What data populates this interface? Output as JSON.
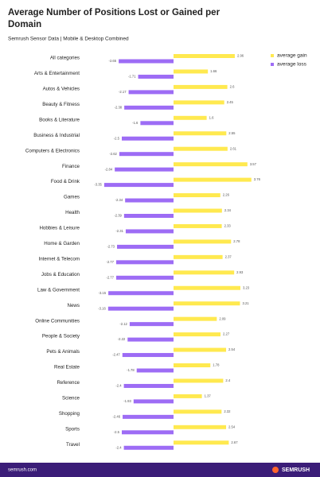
{
  "chart_data": {
    "type": "diverging-bar",
    "title": "Average Number of Positions Lost or Gained per Domain",
    "subtitle": "Semrush Sensor Data | Mobile & Desktop Combined",
    "categories": [
      "All categories",
      "Arts & Entertainment",
      "Autos & Vehicles",
      "Beauty & Fitness",
      "Books & Literature",
      "Business & Industrial",
      "Computers & Electronics",
      "Finance",
      "Food & Drink",
      "Games",
      "Health",
      "Hobbies & Leisure",
      "Home & Garden",
      "Internet & Telecom",
      "Jobs & Education",
      "Law & Government",
      "News",
      "Online Communities",
      "People & Society",
      "Pets & Animals",
      "Real Estate",
      "Reference",
      "Science",
      "Shopping",
      "Sports",
      "Travel"
    ],
    "series": [
      {
        "name": "average gain",
        "color": "#ffe94f",
        "values": [
          2.96,
          1.66,
          2.6,
          2.45,
          1.6,
          2.55,
          2.61,
          3.57,
          3.76,
          2.26,
          2.34,
          2.33,
          2.78,
          2.37,
          2.93,
          3.23,
          3.21,
          2.09,
          2.27,
          2.54,
          1.78,
          2.4,
          1.37,
          2.32,
          2.54,
          2.67
        ]
      },
      {
        "name": "average loss",
        "color": "#9d6cf5",
        "values": [
          -2.65,
          -1.71,
          -2.17,
          -2.38,
          -1.6,
          -2.5,
          -2.62,
          -2.84,
          -3.35,
          -2.34,
          -2.39,
          -2.31,
          -2.73,
          -2.77,
          -2.77,
          -3.15,
          -3.16,
          -2.12,
          -2.22,
          -2.47,
          -1.78,
          -2.4,
          -1.93,
          -2.46,
          -2.5,
          -2.4
        ]
      }
    ],
    "legend": "top-right",
    "footer": "semrush.com",
    "brand": "SEMRUSH"
  }
}
